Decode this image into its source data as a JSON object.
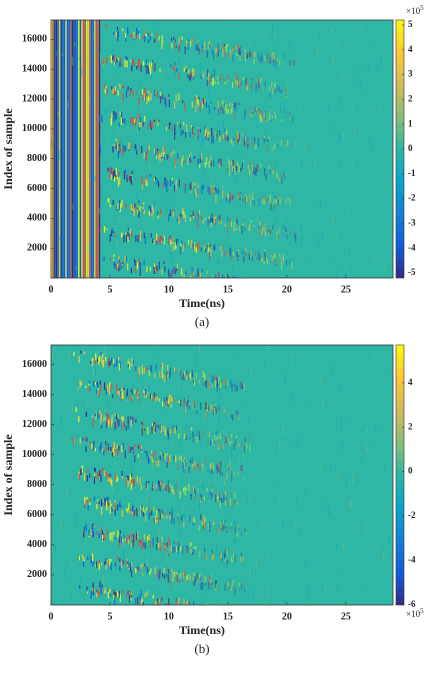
{
  "chart_data": [
    {
      "type": "heatmap",
      "caption": "(a)",
      "xlabel": "Time(ns)",
      "ylabel": "Index of sample",
      "xlim": [
        0,
        29
      ],
      "xticks": [
        0,
        5,
        10,
        15,
        20,
        25
      ],
      "ylim": [
        0,
        17300
      ],
      "yticks": [
        2000,
        4000,
        6000,
        8000,
        10000,
        12000,
        14000,
        16000
      ],
      "clim": [
        -5.2,
        5.2
      ],
      "cticks": [
        -5,
        -4,
        -3,
        -2,
        -1,
        0,
        1,
        2,
        3,
        4,
        5
      ],
      "colorbar_multiplier": "×10",
      "colorbar_exponent": "5",
      "colorbar_label_position": "top",
      "colormap": [
        "#352a87",
        "#0f5cdd",
        "#1481d6",
        "#06a4ca",
        "#2eb7a4",
        "#87bf77",
        "#d1bb59",
        "#fec832",
        "#f9fb0e"
      ]
    },
    {
      "type": "heatmap",
      "caption": "(b)",
      "xlabel": "Time(ns)",
      "ylabel": "Index of sample",
      "xlim": [
        0,
        29
      ],
      "xticks": [
        0,
        5,
        10,
        15,
        20,
        25
      ],
      "ylim": [
        0,
        17300
      ],
      "yticks": [
        2000,
        4000,
        6000,
        8000,
        10000,
        12000,
        14000,
        16000
      ],
      "clim": [
        -6,
        5.7
      ],
      "cticks": [
        -6,
        -4,
        -2,
        0,
        2,
        4
      ],
      "colorbar_multiplier": "×10",
      "colorbar_exponent": "5",
      "colorbar_label_position": "bottom",
      "colormap": [
        "#352a87",
        "#0f5cdd",
        "#1481d6",
        "#06a4ca",
        "#2eb7a4",
        "#87bf77",
        "#d1bb59",
        "#fec832",
        "#f9fb0e"
      ]
    }
  ]
}
